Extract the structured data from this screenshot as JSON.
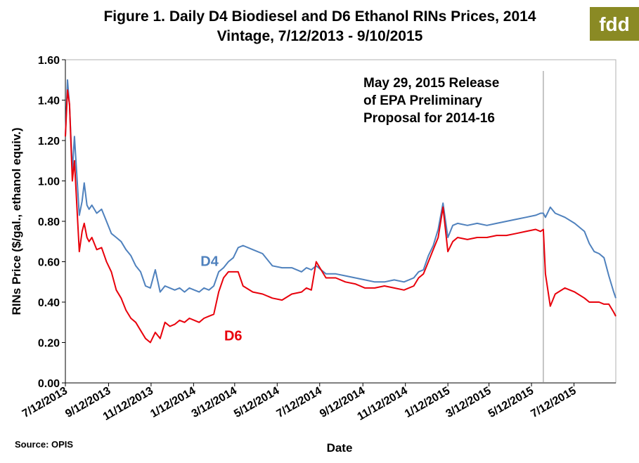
{
  "logo": {
    "text": "fdd",
    "bg_color": "#8a8a24"
  },
  "chart_data": {
    "type": "line",
    "title": "Figure 1. Daily D4 Biodiesel and D6 Ethanol RINs Prices, 2014",
    "subtitle": "Vintage, 7/12/2013 - 9/10/2015",
    "xlabel": "Date",
    "ylabel": "RINs Price ($/gal., ethanol equiv.)",
    "ylim": [
      0,
      1.6
    ],
    "yticks": [
      "0.00",
      "0.20",
      "0.40",
      "0.60",
      "0.80",
      "1.00",
      "1.20",
      "1.40",
      "1.60"
    ],
    "xrange": [
      "2013-07-12",
      "2015-09-10"
    ],
    "xticks": [
      "7/12/2013",
      "9/12/2013",
      "11/12/2013",
      "1/12/2014",
      "3/12/2014",
      "5/12/2014",
      "7/12/2014",
      "9/12/2014",
      "11/12/2014",
      "1/12/2015",
      "3/12/2015",
      "5/12/2015",
      "7/12/2015"
    ],
    "x": [
      "2013-07-12",
      "2013-07-15",
      "2013-07-18",
      "2013-07-22",
      "2013-07-25",
      "2013-08-01",
      "2013-08-05",
      "2013-08-08",
      "2013-08-12",
      "2013-08-15",
      "2013-08-19",
      "2013-08-26",
      "2013-09-02",
      "2013-09-09",
      "2013-09-16",
      "2013-09-23",
      "2013-09-30",
      "2013-10-07",
      "2013-10-14",
      "2013-10-21",
      "2013-10-28",
      "2013-11-04",
      "2013-11-11",
      "2013-11-18",
      "2013-11-25",
      "2013-12-02",
      "2013-12-09",
      "2013-12-16",
      "2013-12-23",
      "2013-12-30",
      "2014-01-06",
      "2014-01-13",
      "2014-01-20",
      "2014-01-27",
      "2014-02-03",
      "2014-02-10",
      "2014-02-17",
      "2014-02-24",
      "2014-03-03",
      "2014-03-10",
      "2014-03-17",
      "2014-03-24",
      "2014-04-07",
      "2014-04-21",
      "2014-05-05",
      "2014-05-19",
      "2014-06-02",
      "2014-06-16",
      "2014-06-23",
      "2014-06-30",
      "2014-07-07",
      "2014-07-21",
      "2014-08-04",
      "2014-08-18",
      "2014-09-01",
      "2014-09-15",
      "2014-09-29",
      "2014-10-13",
      "2014-10-27",
      "2014-11-10",
      "2014-11-24",
      "2014-12-01",
      "2014-12-08",
      "2014-12-15",
      "2014-12-22",
      "2014-12-29",
      "2015-01-05",
      "2015-01-12",
      "2015-01-19",
      "2015-01-26",
      "2015-02-09",
      "2015-02-23",
      "2015-03-09",
      "2015-03-23",
      "2015-04-06",
      "2015-04-20",
      "2015-05-04",
      "2015-05-18",
      "2015-05-25",
      "2015-05-29",
      "2015-06-01",
      "2015-06-08",
      "2015-06-15",
      "2015-06-29",
      "2015-07-13",
      "2015-07-27",
      "2015-08-03",
      "2015-08-10",
      "2015-08-17",
      "2015-08-24",
      "2015-08-31",
      "2015-09-07",
      "2015-09-10"
    ],
    "series": [
      {
        "name": "D4",
        "color": "#4f81bd",
        "values": [
          1.22,
          1.5,
          1.37,
          1.05,
          1.22,
          0.83,
          0.9,
          0.99,
          0.88,
          0.86,
          0.88,
          0.84,
          0.86,
          0.8,
          0.74,
          0.72,
          0.7,
          0.66,
          0.63,
          0.58,
          0.55,
          0.48,
          0.47,
          0.56,
          0.45,
          0.48,
          0.47,
          0.46,
          0.47,
          0.45,
          0.47,
          0.46,
          0.45,
          0.47,
          0.46,
          0.48,
          0.55,
          0.57,
          0.6,
          0.62,
          0.67,
          0.68,
          0.66,
          0.64,
          0.58,
          0.57,
          0.57,
          0.55,
          0.57,
          0.56,
          0.58,
          0.54,
          0.54,
          0.53,
          0.52,
          0.51,
          0.5,
          0.5,
          0.51,
          0.5,
          0.52,
          0.55,
          0.56,
          0.63,
          0.68,
          0.76,
          0.89,
          0.72,
          0.78,
          0.79,
          0.78,
          0.79,
          0.78,
          0.79,
          0.8,
          0.81,
          0.82,
          0.83,
          0.84,
          0.84,
          0.82,
          0.87,
          0.84,
          0.82,
          0.79,
          0.75,
          0.69,
          0.65,
          0.64,
          0.62,
          0.53,
          0.45,
          0.42
        ]
      },
      {
        "name": "D6",
        "color": "#e8000b",
        "values": [
          1.22,
          1.45,
          1.38,
          1.0,
          1.1,
          0.65,
          0.75,
          0.79,
          0.72,
          0.7,
          0.72,
          0.66,
          0.67,
          0.6,
          0.55,
          0.46,
          0.42,
          0.36,
          0.32,
          0.3,
          0.26,
          0.22,
          0.2,
          0.25,
          0.22,
          0.3,
          0.28,
          0.29,
          0.31,
          0.3,
          0.32,
          0.31,
          0.3,
          0.32,
          0.33,
          0.34,
          0.45,
          0.52,
          0.55,
          0.55,
          0.55,
          0.48,
          0.45,
          0.44,
          0.42,
          0.41,
          0.44,
          0.45,
          0.47,
          0.46,
          0.6,
          0.52,
          0.52,
          0.5,
          0.49,
          0.47,
          0.47,
          0.48,
          0.47,
          0.46,
          0.48,
          0.52,
          0.54,
          0.6,
          0.66,
          0.72,
          0.87,
          0.65,
          0.7,
          0.72,
          0.71,
          0.72,
          0.72,
          0.73,
          0.73,
          0.74,
          0.75,
          0.76,
          0.75,
          0.76,
          0.54,
          0.38,
          0.44,
          0.47,
          0.45,
          0.42,
          0.4,
          0.4,
          0.4,
          0.39,
          0.39,
          0.35,
          0.33
        ]
      }
    ],
    "series_labels": [
      {
        "text": "D4",
        "color": "#4f81bd",
        "x": "2014-01-22",
        "y": 0.58
      },
      {
        "text": "D6",
        "color": "#e8000b",
        "x": "2014-02-25",
        "y": 0.21
      }
    ],
    "annotation": {
      "lines": [
        "May 29, 2015 Release",
        "of EPA Preliminary",
        "Proposal for 2014-16"
      ],
      "date": "2015-05-29"
    },
    "source": "Source: OPIS",
    "grid": false,
    "legend": "none"
  }
}
